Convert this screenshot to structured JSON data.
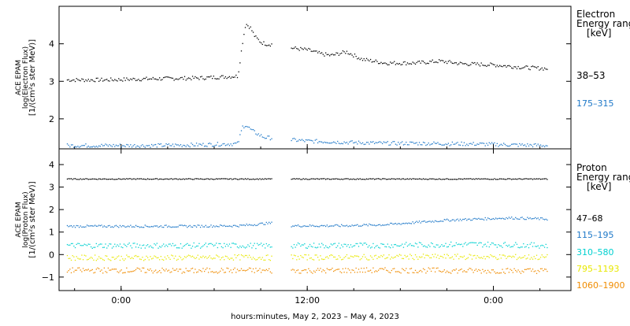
{
  "chart_data": [
    {
      "type": "scatter",
      "panel": "electron",
      "title": "",
      "xlabel": "",
      "ylabel_lines": [
        "ACE EPAM",
        "log(Electron Flux)",
        "[1/(cm²s ster MeV)]"
      ],
      "ylim": [
        1.2,
        5.0
      ],
      "yticks": [
        2,
        3,
        4
      ],
      "legend_title": [
        "Electron",
        "Energy range",
        "[keV]"
      ],
      "series": [
        {
          "name": "38–53",
          "color": "#000000",
          "points": [
            [
              -3.5,
              3.05
            ],
            [
              -1.0,
              3.05
            ],
            [
              2.0,
              3.08
            ],
            [
              5.0,
              3.1
            ],
            [
              7.5,
              3.15
            ],
            [
              7.8,
              4.05
            ],
            [
              8.0,
              4.55
            ],
            [
              8.3,
              4.45
            ],
            [
              8.6,
              4.2
            ],
            [
              9.0,
              4.05
            ],
            [
              9.4,
              4.0
            ],
            [
              9.7,
              4.0
            ],
            [
              11.0,
              3.9
            ],
            [
              12.0,
              3.85
            ],
            [
              12.8,
              3.75
            ],
            [
              13.5,
              3.7
            ],
            [
              14.5,
              3.8
            ],
            [
              15.5,
              3.6
            ],
            [
              17.0,
              3.5
            ],
            [
              19.0,
              3.5
            ],
            [
              20.5,
              3.55
            ],
            [
              22.0,
              3.48
            ],
            [
              24.0,
              3.45
            ],
            [
              26.0,
              3.38
            ],
            [
              27.5,
              3.35
            ]
          ]
        },
        {
          "name": "175–315",
          "color": "#1e78c8",
          "points": [
            [
              -3.5,
              1.3
            ],
            [
              -1.0,
              1.3
            ],
            [
              2.0,
              1.3
            ],
            [
              5.0,
              1.32
            ],
            [
              7.5,
              1.35
            ],
            [
              7.8,
              1.8
            ],
            [
              8.0,
              1.85
            ],
            [
              8.4,
              1.7
            ],
            [
              8.8,
              1.6
            ],
            [
              9.2,
              1.52
            ],
            [
              9.7,
              1.5
            ],
            [
              11.0,
              1.45
            ],
            [
              12.0,
              1.42
            ],
            [
              13.5,
              1.4
            ],
            [
              15.0,
              1.38
            ],
            [
              17.0,
              1.36
            ],
            [
              19.0,
              1.36
            ],
            [
              21.0,
              1.35
            ],
            [
              23.0,
              1.34
            ],
            [
              25.0,
              1.32
            ],
            [
              27.5,
              1.3
            ]
          ]
        }
      ]
    },
    {
      "type": "scatter",
      "panel": "proton",
      "title": "",
      "xlabel": "hours:minutes, May  2, 2023 – May  4, 2023",
      "ylabel_lines": [
        "ACE EPAM",
        "log(Proton Flux)",
        "[1/(cm²s ster MeV)]"
      ],
      "ylim": [
        -1.6,
        4.7
      ],
      "yticks": [
        -1,
        0,
        1,
        2,
        3,
        4
      ],
      "xticks": [
        "0:00",
        "12:00",
        "0:00"
      ],
      "xtick_hours": [
        0,
        12,
        24
      ],
      "xlim_hours": [
        -4,
        29
      ],
      "legend_title": [
        "Proton",
        "Energy range",
        "[keV]"
      ],
      "series": [
        {
          "name": "47–68",
          "color": "#000000",
          "points": [
            [
              -3.5,
              3.38
            ],
            [
              0,
              3.38
            ],
            [
              4,
              3.38
            ],
            [
              8,
              3.38
            ],
            [
              9.7,
              3.38
            ],
            [
              11,
              3.38
            ],
            [
              15,
              3.38
            ],
            [
              19,
              3.38
            ],
            [
              23,
              3.38
            ],
            [
              27.5,
              3.38
            ]
          ]
        },
        {
          "name": "115–195",
          "color": "#1e78c8",
          "points": [
            [
              -3.5,
              1.28
            ],
            [
              0,
              1.28
            ],
            [
              4,
              1.28
            ],
            [
              7.5,
              1.3
            ],
            [
              8.5,
              1.35
            ],
            [
              9.2,
              1.4
            ],
            [
              9.7,
              1.42
            ],
            [
              11,
              1.3
            ],
            [
              14,
              1.3
            ],
            [
              17,
              1.35
            ],
            [
              19,
              1.45
            ],
            [
              21,
              1.55
            ],
            [
              23,
              1.6
            ],
            [
              25,
              1.65
            ],
            [
              27.5,
              1.6
            ]
          ]
        },
        {
          "name": "310–580",
          "color": "#00d0d0",
          "points": [
            [
              -3.5,
              0.42
            ],
            [
              0,
              0.42
            ],
            [
              4,
              0.42
            ],
            [
              8,
              0.42
            ],
            [
              9.7,
              0.4
            ],
            [
              11,
              0.42
            ],
            [
              15,
              0.42
            ],
            [
              19,
              0.45
            ],
            [
              23,
              0.48
            ],
            [
              27.5,
              0.42
            ]
          ]
        },
        {
          "name": "795–1193",
          "color": "#e8e800",
          "points": [
            [
              -3.5,
              -0.12
            ],
            [
              0,
              -0.12
            ],
            [
              4,
              -0.12
            ],
            [
              8,
              -0.1
            ],
            [
              9.7,
              -0.12
            ],
            [
              11,
              -0.1
            ],
            [
              15,
              -0.1
            ],
            [
              19,
              -0.08
            ],
            [
              23,
              -0.08
            ],
            [
              27.5,
              -0.1
            ]
          ]
        },
        {
          "name": "1060–1900",
          "color": "#f08c00",
          "points": [
            [
              -3.5,
              -0.68
            ],
            [
              0,
              -0.68
            ],
            [
              4,
              -0.7
            ],
            [
              8,
              -0.68
            ],
            [
              9.7,
              -0.7
            ],
            [
              11,
              -0.7
            ],
            [
              15,
              -0.68
            ],
            [
              19,
              -0.68
            ],
            [
              23,
              -0.7
            ],
            [
              27.5,
              -0.7
            ]
          ]
        }
      ]
    }
  ]
}
